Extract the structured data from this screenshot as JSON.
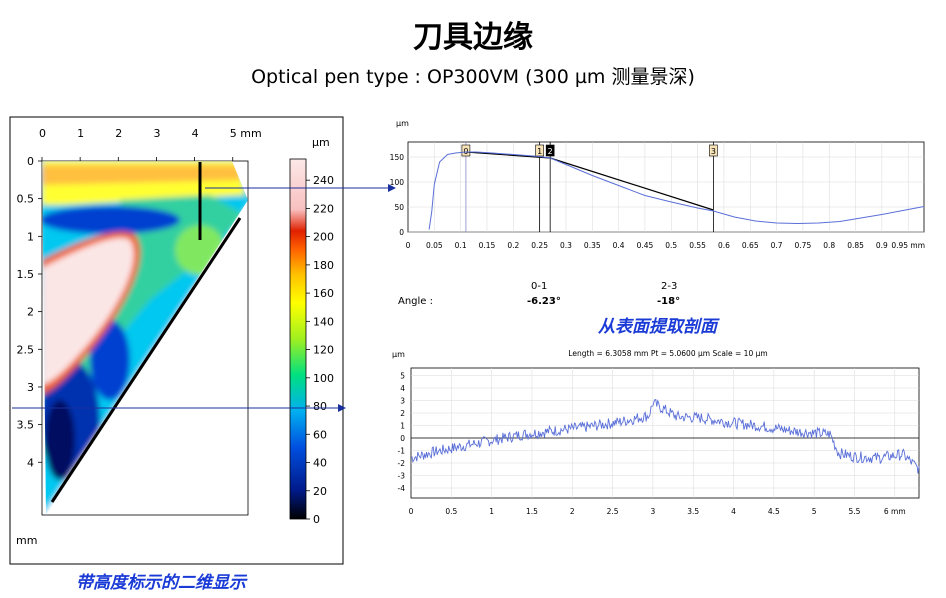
{
  "header": {
    "title": "刀具边缘",
    "subtitle": "Optical pen type : OP300VM (300 µm 测量景深)"
  },
  "captions": {
    "map": "带高度标示的二维显示",
    "profile": "从表面提取剖面"
  },
  "colors": {
    "accent": "#1b3bd6",
    "arrow": "#1a2f9e",
    "profile_line": "#5a6fd8"
  },
  "chart_data": [
    {
      "type": "heatmap",
      "title": "",
      "x_ticks": [
        "0",
        "1",
        "2",
        "3",
        "4",
        "5 mm"
      ],
      "y_ticks": [
        "0",
        "0.5",
        "1",
        "1.5",
        "2",
        "2.5",
        "3",
        "3.5",
        "4"
      ],
      "x_range": [
        0,
        5.4
      ],
      "y_range": [
        0,
        4.7
      ],
      "unit_label": "mm",
      "colorbar": {
        "unit": "µm",
        "ticks": [
          "240",
          "220",
          "200",
          "180",
          "160",
          "140",
          "120",
          "100",
          "80",
          "60",
          "40",
          "20",
          "0"
        ],
        "range": [
          0,
          255
        ],
        "colors": [
          "#000000",
          "#001a8a",
          "#0050e0",
          "#00b0f0",
          "#00e080",
          "#a0f020",
          "#ffff00",
          "#ffc000",
          "#ff6000",
          "#e02000",
          "#f8c0c0",
          "#fce8e8"
        ]
      }
    },
    {
      "type": "line",
      "title": "",
      "ylabel": "µm",
      "x_ticks": [
        "0",
        "0.05",
        "0.1",
        "0.15",
        "0.2",
        "0.25",
        "0.3",
        "0.35",
        "0.4",
        "0.45",
        "0.5",
        "0.55",
        "0.6",
        "0.65",
        "0.7",
        "0.75",
        "0.8",
        "0.85",
        "0.9",
        "0.95 mm"
      ],
      "y_ticks": [
        "0",
        "50",
        "100",
        "150"
      ],
      "xlim": [
        0,
        0.98
      ],
      "ylim": [
        0,
        180
      ],
      "markers": [
        {
          "label": "0",
          "x": 0.11
        },
        {
          "label": "1",
          "x": 0.25
        },
        {
          "label": "2",
          "x": 0.27
        },
        {
          "label": "3",
          "x": 0.58
        }
      ],
      "series": [
        {
          "x": [
            0.04,
            0.045,
            0.05,
            0.06,
            0.075,
            0.09,
            0.11,
            0.13,
            0.16,
            0.2,
            0.25,
            0.27,
            0.3,
            0.35,
            0.4,
            0.45,
            0.5,
            0.55,
            0.58,
            0.62,
            0.66,
            0.7,
            0.74,
            0.78,
            0.82,
            0.86,
            0.9,
            0.94,
            0.98
          ],
          "y": [
            5,
            40,
            95,
            140,
            155,
            158,
            160,
            160,
            158,
            155,
            151,
            148,
            135,
            113,
            93,
            73,
            60,
            48,
            42,
            30,
            22,
            18,
            17,
            18,
            21,
            28,
            35,
            43,
            51
          ]
        }
      ],
      "fit_segments": [
        {
          "x": [
            0.11,
            0.27
          ],
          "y": [
            160,
            148
          ]
        },
        {
          "x": [
            0.27,
            0.58
          ],
          "y": [
            148,
            44
          ]
        }
      ]
    },
    {
      "type": "table",
      "headers": [
        "",
        "0-1",
        "2-3"
      ],
      "rows": [
        [
          "Angle :",
          "-6.23°",
          "-18°"
        ]
      ]
    },
    {
      "type": "line",
      "title": "Length = 6.3058 mm  Pt = 5.0600 µm  Scale = 10 µm",
      "ylabel": "µm",
      "x_ticks": [
        "0",
        "0.5",
        "1",
        "1.5",
        "2",
        "2.5",
        "3",
        "3.5",
        "4",
        "4.5",
        "5",
        "5.5",
        "6 mm"
      ],
      "y_ticks": [
        "5",
        "4",
        "3",
        "2",
        "1",
        "0",
        "-1",
        "-2",
        "-3",
        "-4"
      ],
      "xlim": [
        0,
        6.3
      ],
      "ylim": [
        -4.8,
        5.6
      ],
      "series": [
        {
          "x": [
            0,
            0.3,
            0.6,
            1.0,
            1.4,
            1.8,
            2.2,
            2.6,
            2.95,
            3.0,
            3.3,
            3.6,
            4.0,
            4.4,
            4.8,
            5.2,
            5.3,
            5.5,
            5.8,
            6.1,
            6.3
          ],
          "y": [
            -1.6,
            -1.1,
            -0.7,
            -0.2,
            0.3,
            0.6,
            0.9,
            1.3,
            1.8,
            2.8,
            1.7,
            1.6,
            1.2,
            0.9,
            0.5,
            0.3,
            -1.2,
            -1.5,
            -1.6,
            -1.3,
            -2.5
          ]
        }
      ]
    }
  ]
}
